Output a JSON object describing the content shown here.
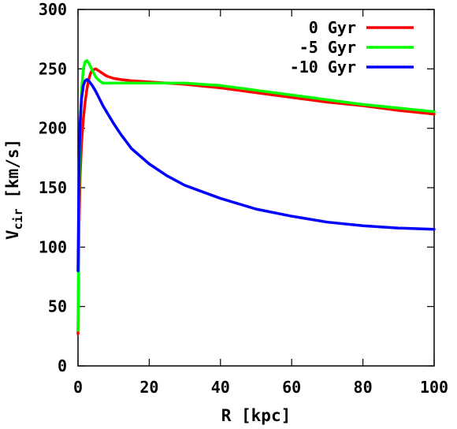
{
  "chart_data": {
    "type": "line",
    "title": "",
    "xlabel": "R [kpc]",
    "ylabel": {
      "main": "V",
      "sub": "cir",
      "unit": " [km/s]"
    },
    "xlim": [
      0,
      100
    ],
    "ylim": [
      0,
      300
    ],
    "xticks": [
      0,
      20,
      40,
      60,
      80,
      100
    ],
    "yticks": [
      0,
      50,
      100,
      150,
      200,
      250,
      300
    ],
    "xtick_labels": [
      "0",
      "20",
      "40",
      "60",
      "80",
      "100"
    ],
    "ytick_labels": [
      "0",
      "50",
      "100",
      "150",
      "200",
      "250",
      "300"
    ],
    "grid": false,
    "legend_position": "top-right",
    "series": [
      {
        "name": "0 Gyr",
        "color": "#ff0000",
        "x": [
          0,
          0.3,
          0.6,
          1,
          1.5,
          2,
          2.5,
          3,
          3.5,
          4,
          5,
          6,
          7,
          8,
          10,
          12,
          15,
          20,
          25,
          30,
          40,
          50,
          60,
          70,
          80,
          90,
          100
        ],
        "y": [
          27,
          120,
          160,
          188,
          208,
          222,
          233,
          241,
          246,
          249,
          250,
          248,
          246,
          244,
          242,
          241,
          240,
          239,
          238,
          237,
          234,
          230,
          226,
          222,
          219,
          215,
          212
        ]
      },
      {
        "name": "-5 Gyr",
        "color": "#00ff00",
        "x": [
          0,
          0.3,
          0.6,
          1,
          1.5,
          2,
          2.5,
          3,
          3.5,
          4,
          5,
          6,
          7,
          8,
          10,
          12,
          15,
          20,
          25,
          30,
          40,
          50,
          60,
          70,
          80,
          90,
          100
        ],
        "y": [
          30,
          140,
          200,
          232,
          250,
          256,
          257,
          255,
          252,
          249,
          243,
          240,
          238,
          238,
          238,
          238,
          238,
          238,
          238,
          238,
          236,
          232,
          228,
          224,
          220,
          217,
          214
        ]
      },
      {
        "name": "-10 Gyr",
        "color": "#0000ff",
        "x": [
          0,
          0.3,
          0.6,
          1,
          1.5,
          2,
          2.5,
          3,
          3.5,
          4,
          5,
          6,
          7,
          8,
          10,
          12,
          15,
          20,
          25,
          30,
          40,
          50,
          60,
          70,
          80,
          90,
          100
        ],
        "y": [
          80,
          170,
          205,
          225,
          236,
          240,
          241,
          240,
          238,
          236,
          231,
          225,
          219,
          214,
          204,
          195,
          183,
          170,
          160,
          152,
          141,
          132,
          126,
          121,
          118,
          116,
          115
        ]
      }
    ]
  }
}
